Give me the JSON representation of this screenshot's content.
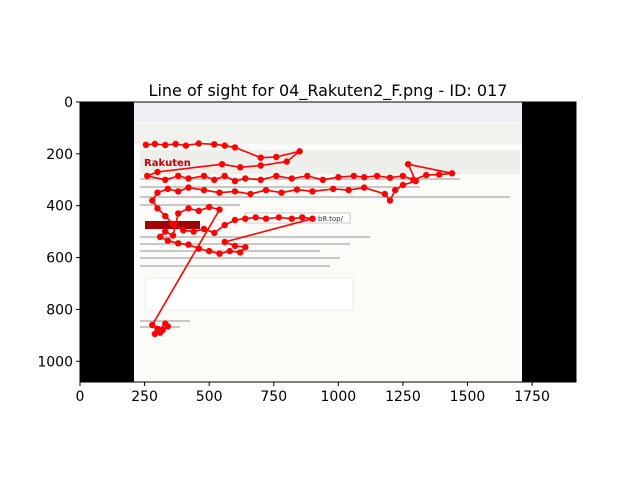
{
  "chart_data": {
    "type": "scatter",
    "title": "Line of sight for 04_Rakuten2_F.png - ID: 017",
    "xlim": [
      0,
      1920
    ],
    "ylim": [
      1080,
      0
    ],
    "y_inverted": true,
    "xticks": [
      0,
      250,
      500,
      750,
      1000,
      1250,
      1500,
      1750
    ],
    "yticks": [
      0,
      200,
      400,
      600,
      800,
      1000
    ],
    "grid": false,
    "legend": "none",
    "background_image": {
      "description": "screenshot of an email client showing a Rakuten phishing email",
      "x_range": [
        210,
        1715
      ],
      "y_range": [
        0,
        1080
      ],
      "side_bars_color": "#000000",
      "brand_text": "Rakuten",
      "link_text": "bb8.top/",
      "url_box": "b8.top/"
    },
    "series": [
      {
        "color": "#ff0000",
        "marker": "circle",
        "connected": true,
        "points": [
          [
            255,
            165
          ],
          [
            290,
            162
          ],
          [
            330,
            166
          ],
          [
            370,
            162
          ],
          [
            410,
            168
          ],
          [
            460,
            160
          ],
          [
            520,
            163
          ],
          [
            560,
            168
          ],
          [
            600,
            175
          ],
          [
            700,
            215
          ],
          [
            760,
            212
          ],
          [
            850,
            190
          ],
          [
            800,
            230
          ],
          [
            700,
            245
          ],
          [
            620,
            252
          ],
          [
            550,
            240
          ],
          [
            300,
            270
          ],
          [
            260,
            285
          ],
          [
            330,
            300
          ],
          [
            380,
            285
          ],
          [
            420,
            295
          ],
          [
            480,
            285
          ],
          [
            520,
            300
          ],
          [
            560,
            285
          ],
          [
            600,
            305
          ],
          [
            640,
            295
          ],
          [
            700,
            300
          ],
          [
            760,
            285
          ],
          [
            820,
            295
          ],
          [
            880,
            285
          ],
          [
            940,
            300
          ],
          [
            1000,
            290
          ],
          [
            1060,
            285
          ],
          [
            1100,
            290
          ],
          [
            1150,
            285
          ],
          [
            1200,
            292
          ],
          [
            1250,
            285
          ],
          [
            1290,
            300
          ],
          [
            1340,
            282
          ],
          [
            1390,
            280
          ],
          [
            1440,
            275
          ],
          [
            1270,
            240
          ],
          [
            1300,
            305
          ],
          [
            1250,
            320
          ],
          [
            1220,
            340
          ],
          [
            1200,
            380
          ],
          [
            1180,
            355
          ],
          [
            1100,
            330
          ],
          [
            1040,
            340
          ],
          [
            980,
            335
          ],
          [
            900,
            345
          ],
          [
            840,
            338
          ],
          [
            780,
            350
          ],
          [
            720,
            340
          ],
          [
            660,
            355
          ],
          [
            600,
            345
          ],
          [
            540,
            350
          ],
          [
            480,
            340
          ],
          [
            420,
            330
          ],
          [
            380,
            345
          ],
          [
            340,
            335
          ],
          [
            300,
            350
          ],
          [
            280,
            380
          ],
          [
            300,
            410
          ],
          [
            330,
            440
          ],
          [
            360,
            470
          ],
          [
            400,
            495
          ],
          [
            440,
            500
          ],
          [
            480,
            490
          ],
          [
            520,
            505
          ],
          [
            560,
            475
          ],
          [
            600,
            455
          ],
          [
            640,
            450
          ],
          [
            680,
            445
          ],
          [
            720,
            450
          ],
          [
            770,
            445
          ],
          [
            820,
            450
          ],
          [
            860,
            445
          ],
          [
            900,
            450
          ],
          [
            560,
            540
          ],
          [
            600,
            555
          ],
          [
            640,
            560
          ],
          [
            620,
            580
          ],
          [
            580,
            575
          ],
          [
            540,
            585
          ],
          [
            500,
            575
          ],
          [
            460,
            565
          ],
          [
            420,
            550
          ],
          [
            380,
            545
          ],
          [
            340,
            535
          ],
          [
            310,
            520
          ],
          [
            330,
            500
          ],
          [
            360,
            515
          ],
          [
            380,
            430
          ],
          [
            420,
            410
          ],
          [
            460,
            420
          ],
          [
            500,
            405
          ],
          [
            540,
            415
          ],
          [
            280,
            860
          ],
          [
            300,
            875
          ],
          [
            320,
            880
          ],
          [
            340,
            865
          ],
          [
            310,
            890
          ],
          [
            290,
            895
          ],
          [
            330,
            855
          ]
        ]
      }
    ]
  }
}
